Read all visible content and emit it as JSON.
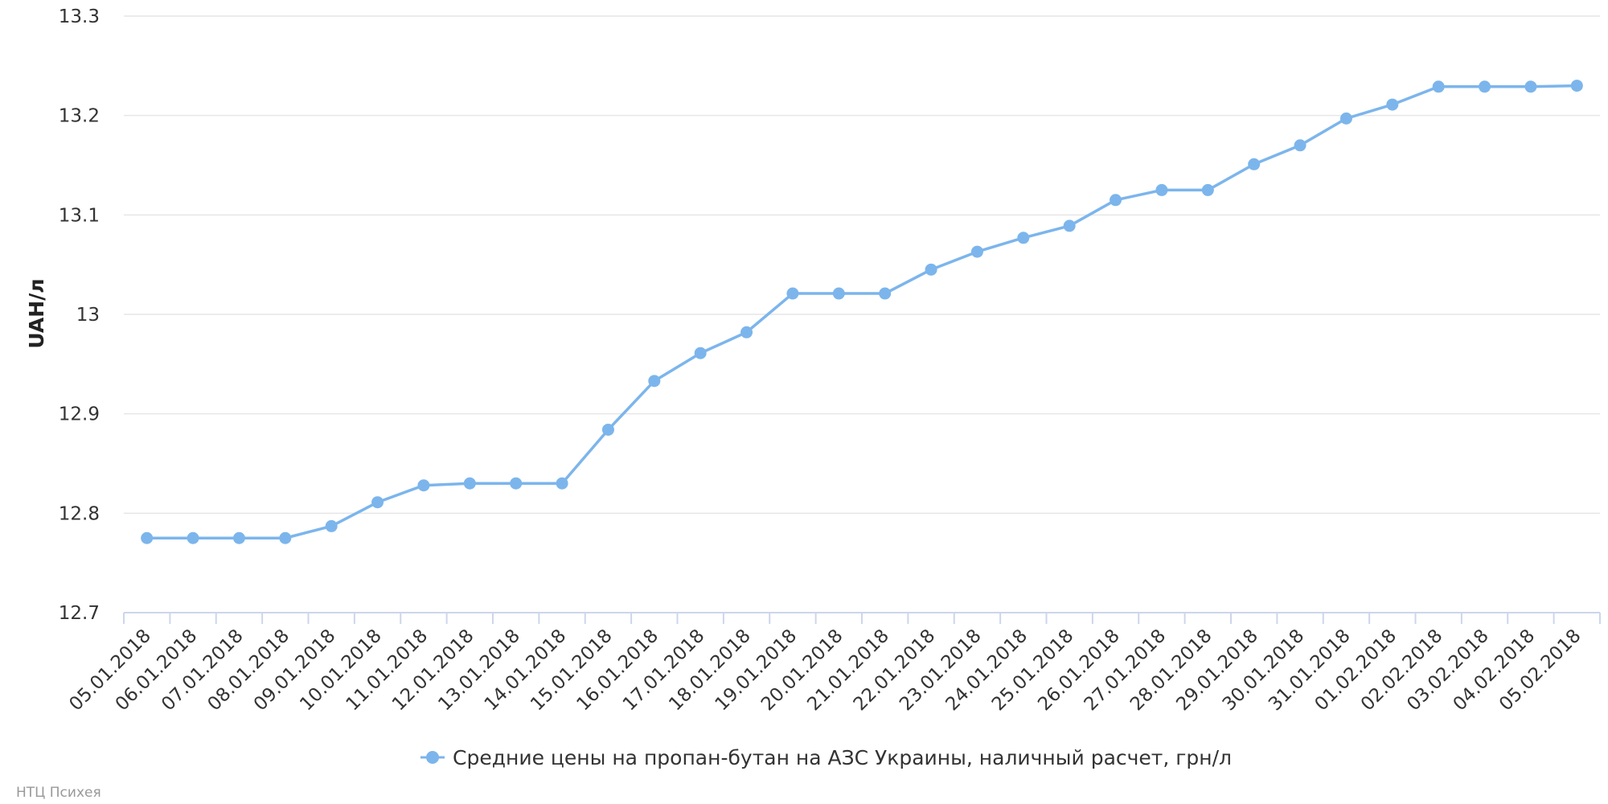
{
  "chart_data": {
    "type": "line",
    "ylabel": "UAH/л",
    "ylim": [
      12.7,
      13.3
    ],
    "yticks": [
      12.7,
      12.8,
      12.9,
      13,
      13.1,
      13.2,
      13.3
    ],
    "ytick_labels": [
      "12.7",
      "12.8",
      "12.9",
      "13",
      "13.1",
      "13.2",
      "13.3"
    ],
    "grid": "horizontal",
    "legend_position": "bottom-center",
    "categories": [
      "05.01.2018",
      "06.01.2018",
      "07.01.2018",
      "08.01.2018",
      "09.01.2018",
      "10.01.2018",
      "11.01.2018",
      "12.01.2018",
      "13.01.2018",
      "14.01.2018",
      "15.01.2018",
      "16.01.2018",
      "17.01.2018",
      "18.01.2018",
      "19.01.2018",
      "20.01.2018",
      "21.01.2018",
      "22.01.2018",
      "23.01.2018",
      "24.01.2018",
      "25.01.2018",
      "26.01.2018",
      "27.01.2018",
      "28.01.2018",
      "29.01.2018",
      "30.01.2018",
      "31.01.2018",
      "01.02.2018",
      "02.02.2018",
      "03.02.2018",
      "04.02.2018",
      "05.02.2018"
    ],
    "series": [
      {
        "name": "Средние цены на пропан-бутан на АЗС Украины, наличный расчет, грн/л",
        "color": "#7cb5ec",
        "values": [
          12.775,
          12.775,
          12.775,
          12.775,
          12.787,
          12.811,
          12.828,
          12.83,
          12.83,
          12.83,
          12.884,
          12.933,
          12.961,
          12.982,
          13.021,
          13.021,
          13.021,
          13.045,
          13.063,
          13.077,
          13.089,
          13.115,
          13.125,
          13.125,
          13.151,
          13.17,
          13.197,
          13.211,
          13.229,
          13.229,
          13.229,
          13.23
        ]
      }
    ]
  },
  "credit": "НТЦ Психея"
}
